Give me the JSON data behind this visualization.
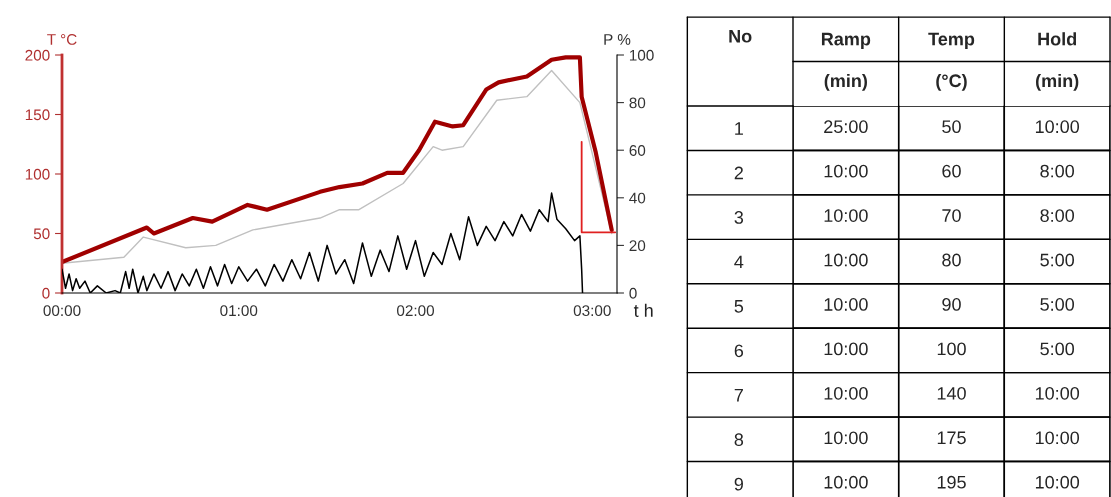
{
  "chart_data": [
    {
      "type": "line",
      "ylabel": "T °C",
      "y2label": "P %",
      "xlabel": "t h",
      "xlim": [
        0,
        3.14
      ],
      "xticks": [
        {
          "value": 0,
          "label": "00:00"
        },
        {
          "value": 1,
          "label": "01:00"
        },
        {
          "value": 2,
          "label": "02:00"
        },
        {
          "value": 3,
          "label": "03:00"
        }
      ],
      "ylim": [
        0,
        200
      ],
      "yticks": [
        0,
        50,
        100,
        150,
        200
      ],
      "y2lim": [
        0,
        100
      ],
      "y2ticks": [
        0,
        20,
        40,
        60,
        80,
        100
      ],
      "grid": false,
      "legend": false,
      "marker": "none",
      "line_style": "solid",
      "series": [
        {
          "color": "#c0c0c0",
          "x": [
            0,
            0.35,
            0.46,
            0.7,
            0.87,
            1.08,
            1.46,
            1.57,
            1.68,
            1.93,
            2.1,
            2.15,
            2.27,
            2.46,
            2.63,
            2.77,
            2.93,
            3.11
          ],
          "values": [
            25,
            30,
            47,
            38,
            40,
            53,
            63,
            70,
            70,
            92,
            123,
            120,
            123,
            162,
            165,
            187,
            160,
            50
          ]
        },
        {
          "color": "#a00000",
          "x": [
            0,
            0.48,
            0.52,
            0.74,
            0.85,
            1.05,
            1.16,
            1.46,
            1.57,
            1.7,
            1.84,
            1.93,
            2.02,
            2.11,
            2.21,
            2.27,
            2.4,
            2.47,
            2.63,
            2.77,
            2.85,
            2.93,
            2.94,
            3.02,
            3.11
          ],
          "values": [
            26,
            55,
            50,
            63,
            60,
            74,
            70,
            85,
            89,
            92,
            101,
            101,
            120,
            144,
            140,
            141,
            171,
            177,
            182,
            196,
            198,
            198,
            165,
            118,
            53
          ]
        },
        {
          "color": "#e02020",
          "x": [
            2.94,
            2.94,
            3.13
          ],
          "values": [
            127,
            51,
            51
          ]
        },
        {
          "color": "#000000",
          "axis": "y2",
          "x": [
            0,
            0.02,
            0.04,
            0.06,
            0.08,
            0.1,
            0.13,
            0.16,
            0.2,
            0.25,
            0.3,
            0.33,
            0.36,
            0.38,
            0.4,
            0.43,
            0.46,
            0.48,
            0.52,
            0.56,
            0.6,
            0.64,
            0.68,
            0.72,
            0.76,
            0.8,
            0.84,
            0.88,
            0.92,
            0.96,
            1.0,
            1.05,
            1.1,
            1.15,
            1.2,
            1.25,
            1.3,
            1.35,
            1.4,
            1.45,
            1.5,
            1.55,
            1.6,
            1.65,
            1.7,
            1.75,
            1.8,
            1.85,
            1.9,
            1.95,
            2.0,
            2.05,
            2.1,
            2.15,
            2.2,
            2.25,
            2.3,
            2.35,
            2.4,
            2.45,
            2.5,
            2.55,
            2.6,
            2.65,
            2.7,
            2.75,
            2.77,
            2.8,
            2.85,
            2.9,
            2.93,
            2.94,
            2.945
          ],
          "values": [
            10,
            2,
            8,
            1,
            6,
            2,
            5,
            0,
            3,
            0,
            1,
            0,
            9,
            2,
            10,
            0,
            7,
            1,
            8,
            2,
            9,
            1,
            8,
            3,
            10,
            2,
            11,
            3,
            12,
            4,
            11,
            5,
            10,
            3,
            12,
            5,
            14,
            6,
            17,
            5,
            20,
            8,
            14,
            4,
            21,
            7,
            18,
            9,
            24,
            10,
            22,
            7,
            17,
            12,
            25,
            14,
            32,
            20,
            28,
            22,
            30,
            24,
            33,
            26,
            35,
            30,
            42,
            31,
            27,
            22,
            24,
            10,
            0
          ]
        }
      ]
    },
    {
      "type": "heatmap",
      "ylabel": "No",
      "categories": [
        "Ramp\n(min)",
        "Temp\n(°C)",
        "Hold\n(min)"
      ],
      "y_categories": [
        "1",
        "2",
        "3",
        "4",
        "5",
        "6",
        "7",
        "8",
        "9"
      ],
      "cells": [
        [
          null,
          null,
          null
        ],
        [
          null,
          null,
          null
        ],
        [
          null,
          null,
          null
        ],
        [
          null,
          null,
          null
        ],
        [
          null,
          null,
          null
        ],
        [
          null,
          null,
          null
        ],
        [
          null,
          null,
          null
        ],
        [
          null,
          null,
          null
        ],
        [
          null,
          null,
          null
        ]
      ],
      "cell_labels": [
        [
          "25:00",
          "50",
          "10:00"
        ],
        [
          "10:00",
          "60",
          "8:00"
        ],
        [
          "10:00",
          "70",
          "8:00"
        ],
        [
          "10:00",
          "80",
          "5:00"
        ],
        [
          "10:00",
          "90",
          "5:00"
        ],
        [
          "10:00",
          "100",
          "5:00"
        ],
        [
          "10:00",
          "140",
          "10:00"
        ],
        [
          "10:00",
          "175",
          "10:00"
        ],
        [
          "10:00",
          "195",
          "10:00"
        ]
      ]
    }
  ]
}
